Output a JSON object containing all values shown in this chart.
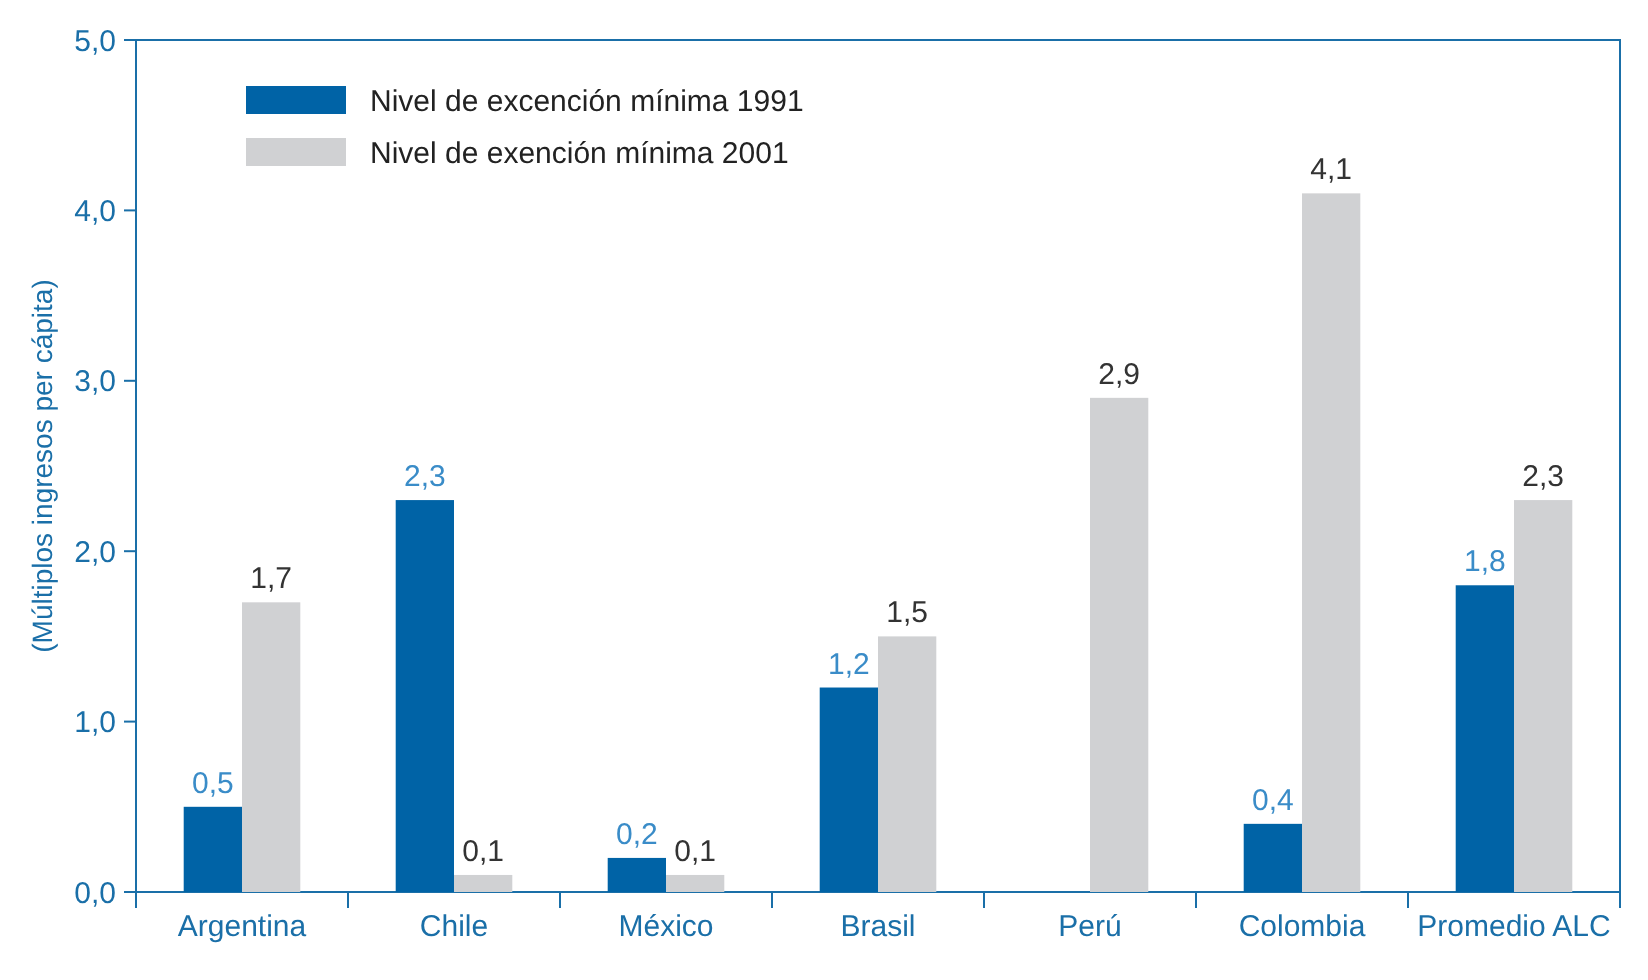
{
  "chart_data": {
    "type": "bar",
    "ylabel": "(Múltiplos ingresos per cápita)",
    "categories": [
      "Argentina",
      "Chile",
      "México",
      "Brasil",
      "Perú",
      "Colombia",
      "Promedio ALC"
    ],
    "series": [
      {
        "name": "Nivel de excención mínima 1991",
        "color": "#0063a6",
        "values": [
          0.5,
          2.3,
          0.2,
          1.2,
          null,
          0.4,
          1.8
        ],
        "value_labels": [
          "0,5",
          "2,3",
          "0,2",
          "1,2",
          null,
          "0,4",
          "1,8"
        ]
      },
      {
        "name": "Nivel de exención mínima 2001",
        "color": "#d0d1d3",
        "values": [
          1.7,
          0.1,
          0.1,
          1.5,
          2.9,
          4.1,
          2.3
        ],
        "value_labels": [
          "1,7",
          "0,1",
          "0,1",
          "1,5",
          "2,9",
          "4,1",
          "2,3"
        ]
      }
    ],
    "ylim": [
      0,
      5
    ],
    "yticks": [
      {
        "value": 0,
        "label": "0,0"
      },
      {
        "value": 1,
        "label": "1,0"
      },
      {
        "value": 2,
        "label": "2,0"
      },
      {
        "value": 3,
        "label": "3,0"
      },
      {
        "value": 4,
        "label": "4,0"
      },
      {
        "value": 5,
        "label": "5,0"
      }
    ],
    "legend": "top left"
  }
}
